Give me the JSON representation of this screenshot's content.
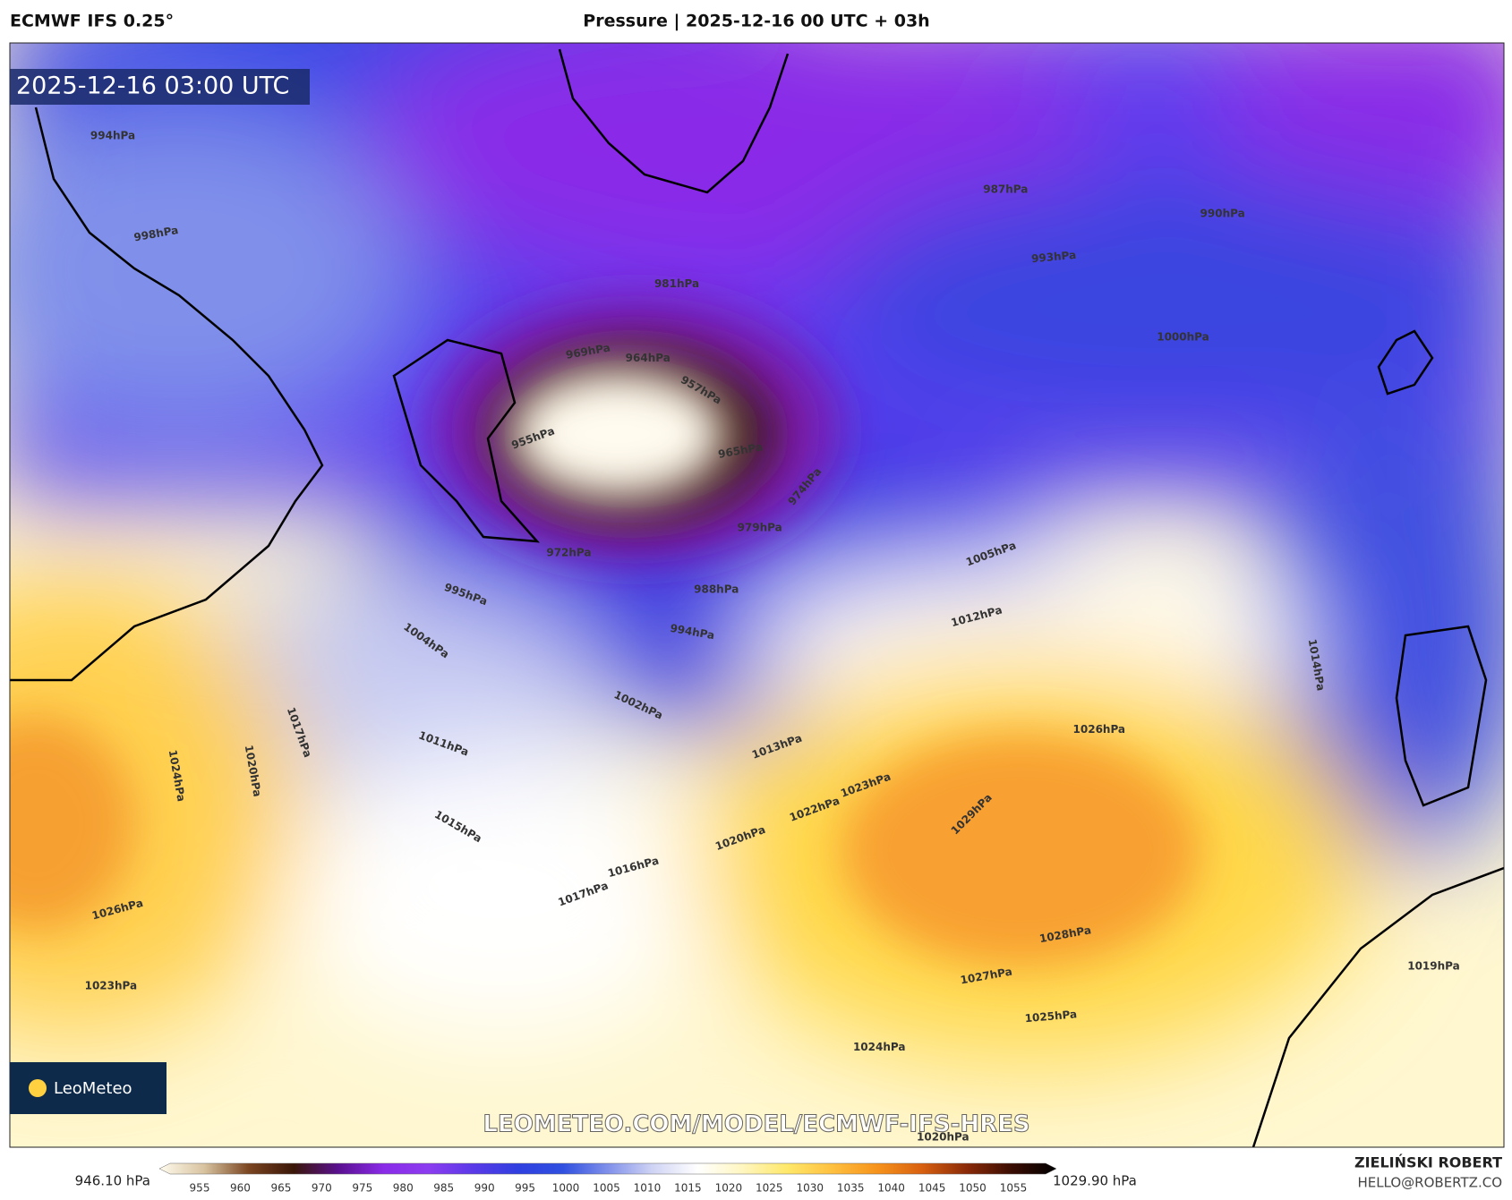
{
  "header": {
    "model": "ECMWF IFS 0.25°",
    "title": "Pressure | 2025-12-16 00 UTC + 03h"
  },
  "valid_time": "2025-12-16 03:00 UTC",
  "isobar_labels": [
    "981hPa",
    "969hPa",
    "964hPa",
    "957hPa",
    "955hPa",
    "965hPa",
    "974hPa",
    "979hPa",
    "972hPa",
    "988hPa",
    "994hPa",
    "995hPa",
    "1004hPa",
    "1002hPa",
    "1011hPa",
    "1015hPa",
    "1017hPa",
    "1016hPa",
    "1020hPa",
    "1022hPa",
    "1023hPa",
    "1029hPa",
    "1026hPa",
    "1028hPa",
    "1027hPa",
    "1025hPa",
    "1024hPa",
    "1000hPa",
    "990hPa",
    "987hPa",
    "993hPa",
    "1005hPa",
    "1012hPa",
    "1013hPa",
    "1014hPa",
    "1019hPa",
    "1023hPa",
    "1026hPa",
    "1024hPa",
    "1020hPa",
    "1017hPa",
    "998hPa",
    "994hPa",
    "1020hPa"
  ],
  "watermark": "LEOMETEO.COM/MODEL/ECMWF-IFS-HRES",
  "logo": "LeoMeteo",
  "colorbar": {
    "min_label": "946.10 hPa",
    "max_label": "1029.90 hPa",
    "ticks": [
      "955",
      "960",
      "965",
      "970",
      "975",
      "980",
      "985",
      "990",
      "995",
      "1000",
      "1005",
      "1010",
      "1015",
      "1020",
      "1025",
      "1030",
      "1035",
      "1040",
      "1045",
      "1050",
      "1055"
    ]
  },
  "author": {
    "name": "ZIELIŃSKI ROBERT",
    "email": "HELLO@ROBERTZ.CO"
  }
}
